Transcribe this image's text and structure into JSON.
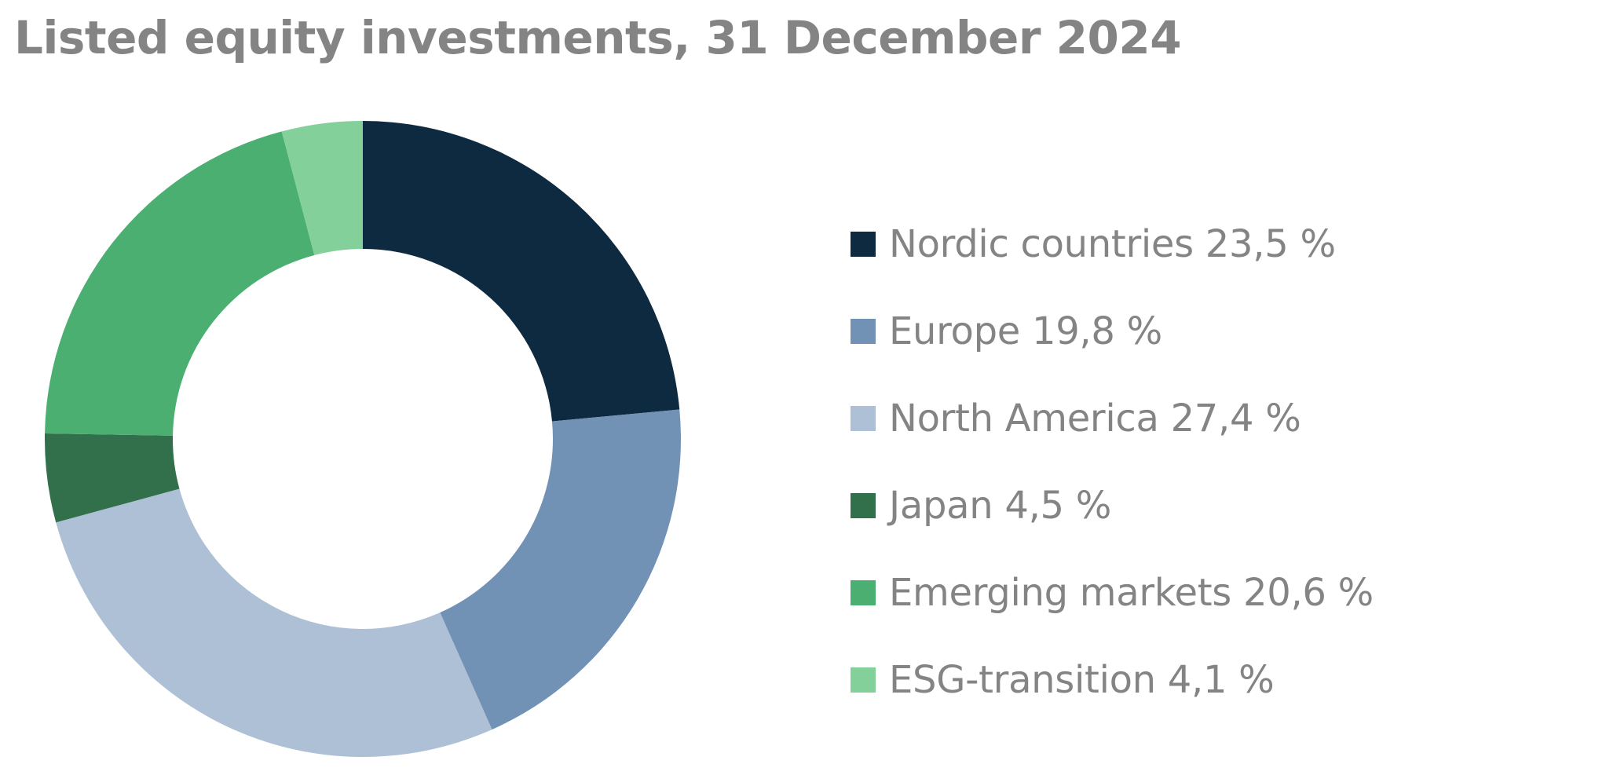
{
  "chart_data": {
    "type": "pie",
    "title": "Listed equity investments, 31 December 2024",
    "categories": [
      "Nordic countries",
      "Europe",
      "North America",
      "Japan",
      "Emerging markets",
      "ESG-transition"
    ],
    "values": [
      23.5,
      19.8,
      27.4,
      4.5,
      20.6,
      4.1
    ],
    "colors": [
      "#0d2a41",
      "#7191b5",
      "#adc0d5",
      "#31704a",
      "#4aaf70",
      "#84d09b"
    ],
    "legend_labels": [
      "Nordic countries 23,5 %",
      "Europe 19,8 %",
      "North America 27,4 %",
      "Japan 4,5 %",
      "Emerging markets 20,6 %",
      "ESG-transition 4,1 %"
    ],
    "legend_position": "right",
    "donut": true,
    "start_angle": "12 o'clock",
    "direction": "clockwise"
  }
}
